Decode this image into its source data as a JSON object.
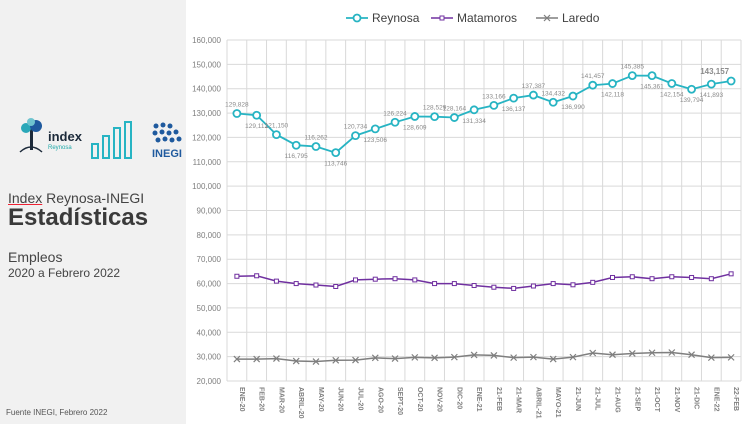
{
  "left": {
    "header_prefix": "Index",
    "header_rest": " Reynosa-INEGI",
    "title": "Estadísticas",
    "subtitle": "Empleos",
    "period": "2020 a Febrero 2022",
    "source": "Fuente INEGI, Febrero 2022",
    "logo_index_text": "index",
    "logo_index_sub": "Reynosa",
    "logo_inegi_text": "INEGI"
  },
  "colors": {
    "reynosa": "#27b4c3",
    "matamoros": "#7030a0",
    "laredo": "#7f7f7f",
    "grid": "#d9d9d9",
    "tick": "#7f7f7f"
  },
  "chart_data": {
    "type": "line",
    "title": "",
    "legend_position": "top",
    "ylim": [
      20000,
      160000
    ],
    "yticks": [
      "20,000",
      "30,000",
      "40,000",
      "50,000",
      "60,000",
      "70,000",
      "80,000",
      "90,000",
      "100,000",
      "110,000",
      "120,000",
      "130,000",
      "140,000",
      "150,000",
      "160,000"
    ],
    "categories": [
      "ENE-20",
      "FEB-20",
      "MAR-20",
      "ABRIL-20",
      "MAY-20",
      "JUN-20",
      "JUL-20",
      "AGO-20",
      "SEPT-20",
      "OCT-20",
      "NOV-20",
      "DIC-20",
      "ENE-21",
      "21-FEB",
      "21-MAR",
      "ABRIL-21",
      "MAYO-21",
      "21-JUN",
      "21-JUL",
      "21-AUG",
      "21-SEP",
      "21-OCT",
      "21-NOV",
      "21-DIC",
      "ENE-22",
      "22-FEB"
    ],
    "series": [
      {
        "name": "Reynosa",
        "values": [
          129828,
          129112,
          121150,
          116795,
          116262,
          113746,
          120734,
          123506,
          126224,
          128609,
          128529,
          128164,
          131334,
          133166,
          136137,
          137387,
          134432,
          136990,
          141457,
          142118,
          145385,
          145361,
          142154,
          139794,
          141893,
          143157
        ]
      },
      {
        "name": "Matamoros",
        "values": [
          63000,
          63200,
          61000,
          60000,
          59400,
          58800,
          61500,
          61800,
          62000,
          61500,
          60000,
          60000,
          59200,
          58500,
          58000,
          59000,
          60000,
          59500,
          60500,
          62500,
          62800,
          62000,
          62800,
          62500,
          62000,
          64000
        ]
      },
      {
        "name": "Laredo",
        "values": [
          29000,
          29000,
          29200,
          28200,
          28000,
          28500,
          28600,
          29500,
          29200,
          29700,
          29500,
          29800,
          30700,
          30500,
          29600,
          29800,
          29000,
          29800,
          31500,
          30800,
          31300,
          31600,
          31700,
          30800,
          29600,
          29700
        ]
      }
    ],
    "data_labels": [
      "129,828",
      "129,112",
      "121,150",
      "116,795",
      "116,262",
      "113,746",
      "120,734",
      "123,506",
      "126,224",
      "128,609",
      "128,529",
      "128,164",
      "131,334",
      "133,166",
      "136,137",
      "137,387",
      "134,432",
      "136,990",
      "141,457",
      "142,118",
      "145,385",
      "145,361",
      "142,154",
      "139,794",
      "141,893",
      "143,157"
    ]
  }
}
